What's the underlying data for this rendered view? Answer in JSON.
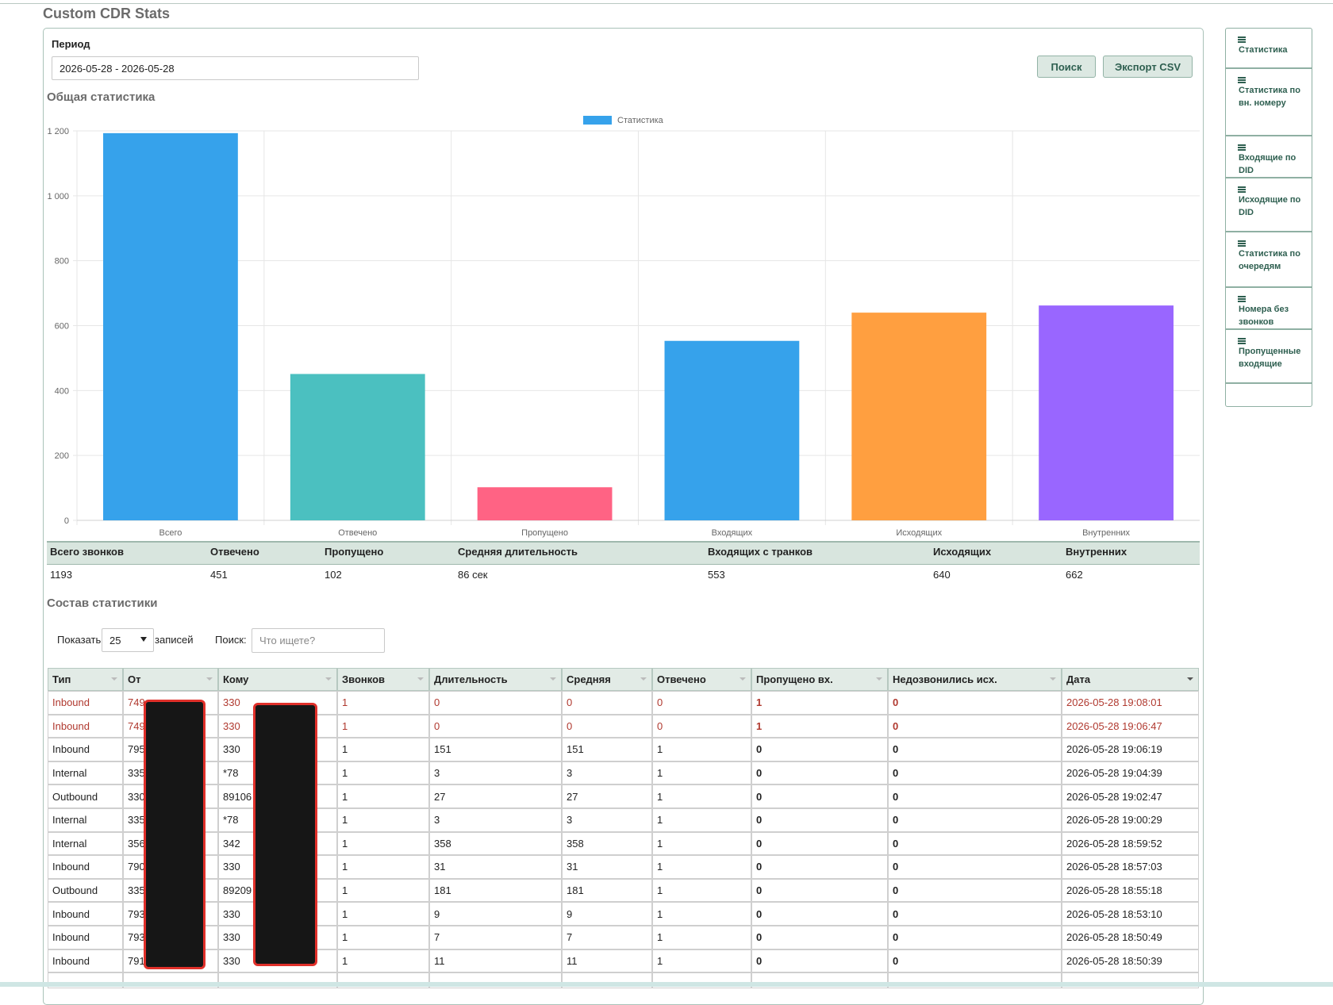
{
  "header": {
    "title": "Custom CDR Stats"
  },
  "filter": {
    "period_label": "Период",
    "period_value": "2026-05-28 - 2026-05-28",
    "search_button": "Поиск",
    "export_button": "Экспорт CSV"
  },
  "sidebar": {
    "items": [
      "Статистика",
      "Статистика по вн. номеру",
      "Входящие по DID",
      "Исходящие по DID",
      "Статистика по очередям",
      "Номера без звонков",
      "Пропущенные входящие"
    ]
  },
  "overview": {
    "heading": "Общая статистика"
  },
  "chart_data": {
    "type": "bar",
    "categories": [
      "Всего",
      "Отвечено",
      "Пропущено",
      "Входящих",
      "Исходящих",
      "Внутренних"
    ],
    "series": [
      {
        "name": "Статистика",
        "color": "#36a2eb",
        "colors": [
          "#36a2eb",
          "#4bc0c0",
          "#ff6384",
          "#36a2eb",
          "#ff9f40",
          "#9966ff"
        ],
        "values": [
          1193,
          451,
          102,
          553,
          640,
          662
        ]
      }
    ],
    "ylim": [
      0,
      1200
    ],
    "yticks": [
      0,
      200,
      400,
      600,
      800,
      {
        "value": 1000,
        "label": "1 000"
      },
      {
        "value": 1200,
        "label": "1 200"
      }
    ],
    "grid": true,
    "legend": "top"
  },
  "summary": {
    "headers": [
      "Всего звонков",
      "Отвечено",
      "Пропущено",
      "Средняя длительность",
      "Входящих с транков",
      "Исходящих",
      "Внутренних"
    ],
    "values": [
      "1193",
      "451",
      "102",
      "86 сек",
      "553",
      "640",
      "662"
    ]
  },
  "details": {
    "heading": "Состав статистики",
    "show_label": "Показать",
    "page_size": "25",
    "entries_label": "записей",
    "search_label": "Поиск:",
    "search_placeholder": "Что ищете?",
    "headers": [
      "Тип",
      "От",
      "Кому",
      "Звонков",
      "Длительность",
      "Средняя",
      "Отвечено",
      "Пропущено вх.",
      "Недозвонились исх.",
      "Дата"
    ],
    "rows": [
      {
        "color": "#b0392f",
        "cells": [
          "Inbound",
          "749",
          "330",
          "1",
          "0",
          "0",
          "0",
          "1",
          "0",
          "2026-05-28 19:08:01"
        ]
      },
      {
        "color": "#b0392f",
        "cells": [
          "Inbound",
          "749",
          "330",
          "1",
          "0",
          "0",
          "0",
          "1",
          "0",
          "2026-05-28 19:06:47"
        ]
      },
      {
        "color": "#222222",
        "cells": [
          "Inbound",
          "795",
          "330",
          "1",
          "151",
          "151",
          "1",
          "0",
          "0",
          "2026-05-28 19:06:19"
        ]
      },
      {
        "color": "#222222",
        "cells": [
          "Internal",
          "335",
          "*78",
          "1",
          "3",
          "3",
          "1",
          "0",
          "0",
          "2026-05-28 19:04:39"
        ]
      },
      {
        "color": "#222222",
        "cells": [
          "Outbound",
          "330",
          "89106",
          "1",
          "27",
          "27",
          "1",
          "0",
          "0",
          "2026-05-28 19:02:47"
        ]
      },
      {
        "color": "#222222",
        "cells": [
          "Internal",
          "335",
          "*78",
          "1",
          "3",
          "3",
          "1",
          "0",
          "0",
          "2026-05-28 19:00:29"
        ]
      },
      {
        "color": "#222222",
        "cells": [
          "Internal",
          "356",
          "342",
          "1",
          "358",
          "358",
          "1",
          "0",
          "0",
          "2026-05-28 18:59:52"
        ]
      },
      {
        "color": "#222222",
        "cells": [
          "Inbound",
          "790",
          "330",
          "1",
          "31",
          "31",
          "1",
          "0",
          "0",
          "2026-05-28 18:57:03"
        ]
      },
      {
        "color": "#222222",
        "cells": [
          "Outbound",
          "335",
          "89209",
          "1",
          "181",
          "181",
          "1",
          "0",
          "0",
          "2026-05-28 18:55:18"
        ]
      },
      {
        "color": "#222222",
        "cells": [
          "Inbound",
          "793",
          "330",
          "1",
          "9",
          "9",
          "1",
          "0",
          "0",
          "2026-05-28 18:53:10"
        ]
      },
      {
        "color": "#222222",
        "cells": [
          "Inbound",
          "793",
          "330",
          "1",
          "7",
          "7",
          "1",
          "0",
          "0",
          "2026-05-28 18:50:49"
        ]
      },
      {
        "color": "#222222",
        "cells": [
          "Inbound",
          "791",
          "330",
          "1",
          "11",
          "11",
          "1",
          "0",
          "0",
          "2026-05-28 18:50:39"
        ]
      }
    ]
  }
}
